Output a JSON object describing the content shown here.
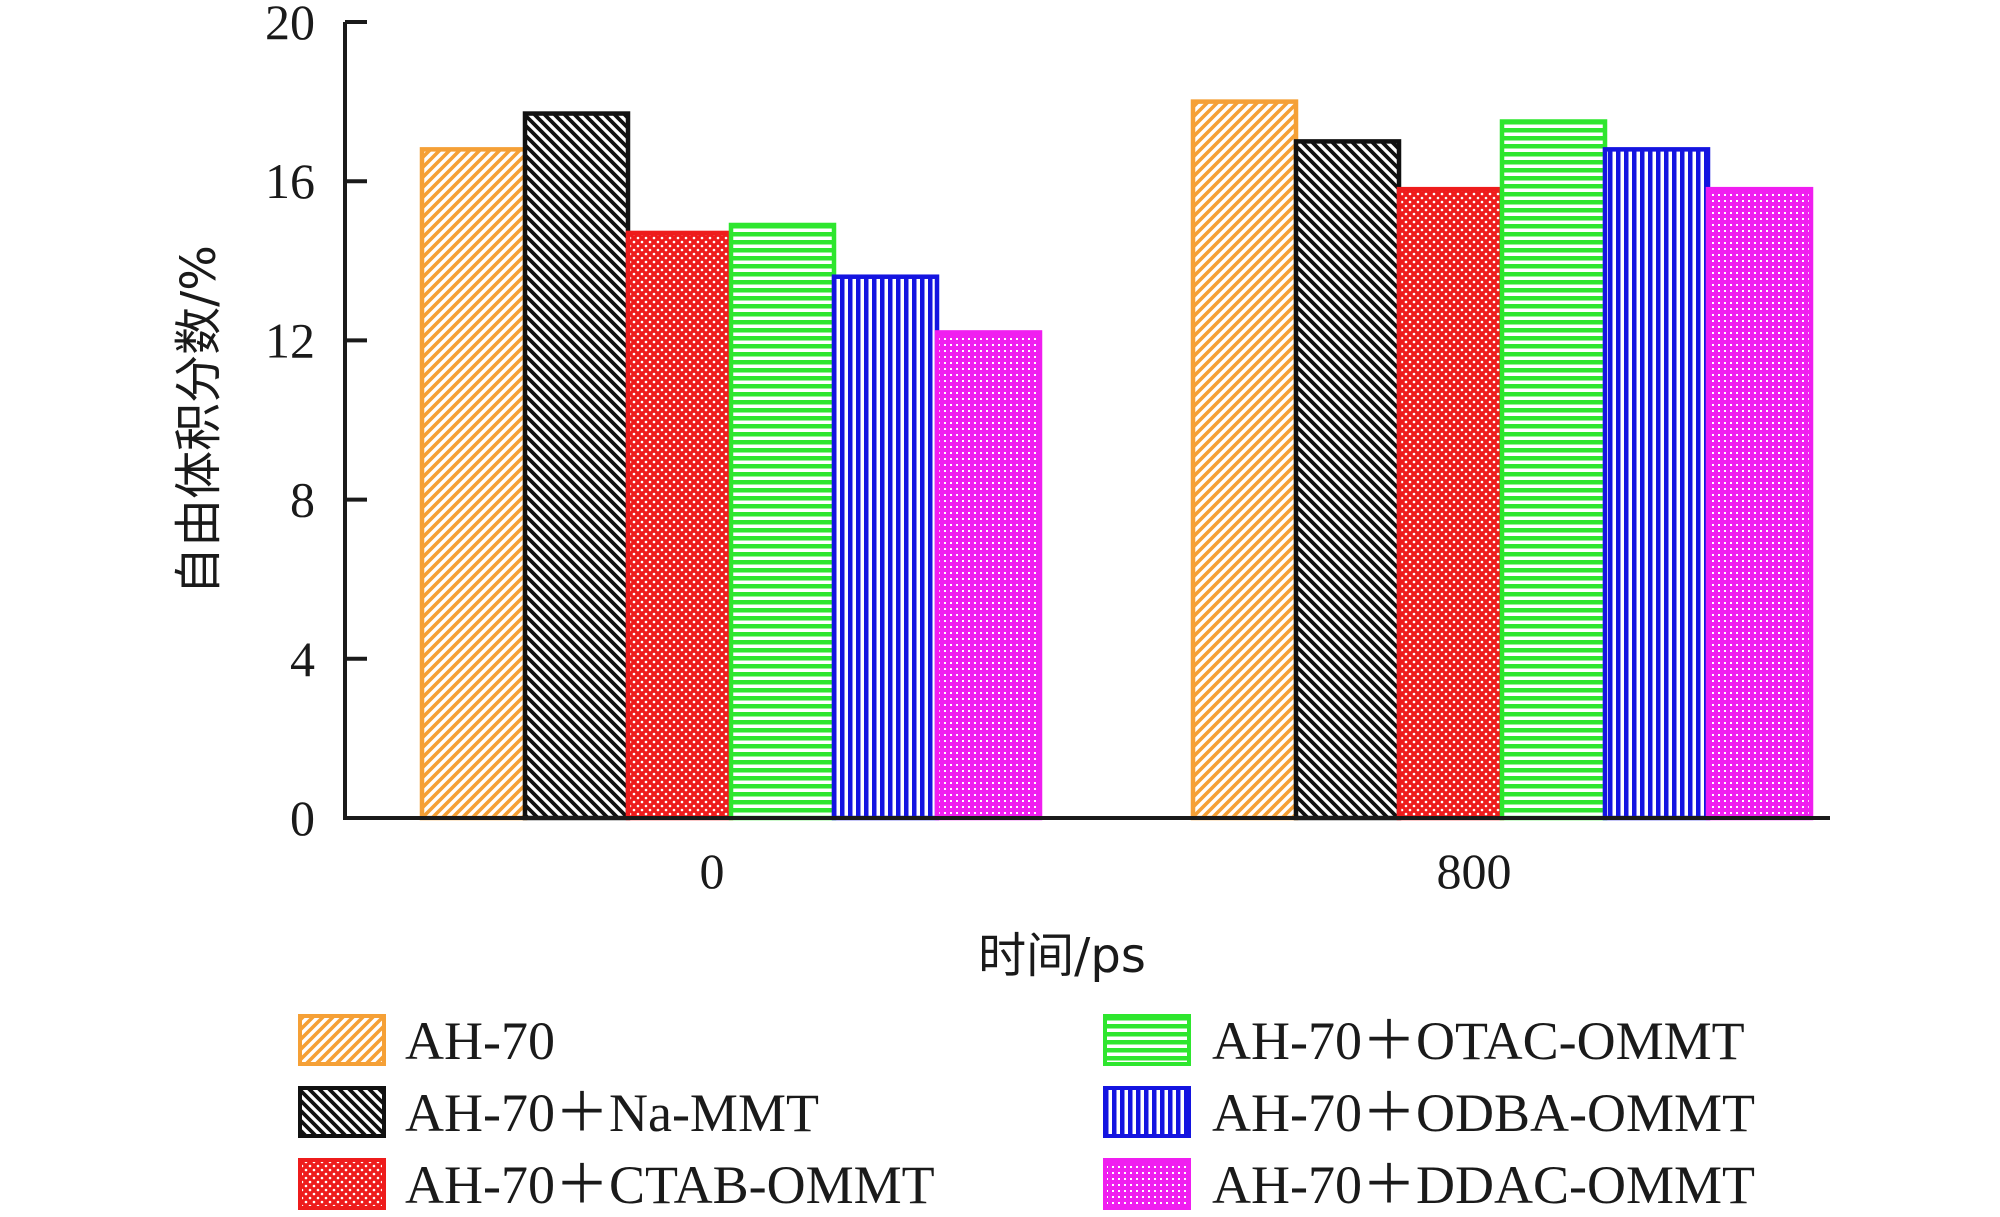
{
  "chart_data": {
    "type": "bar",
    "title": "",
    "xlabel": "时间/ps",
    "ylabel": "自由体积分数/%",
    "ylim": [
      0,
      20
    ],
    "yticks": [
      "0",
      "4",
      "8",
      "12",
      "16",
      "20"
    ],
    "categories": [
      "0",
      "800"
    ],
    "series": [
      {
        "name": "AH-70",
        "values": [
          16.8,
          18.0
        ],
        "color": "#f5a036",
        "pattern": "diag-right"
      },
      {
        "name": "AH-70＋Na-MMT",
        "values": [
          17.7,
          17.0
        ],
        "color": "#111111",
        "pattern": "diag-left"
      },
      {
        "name": "AH-70＋CTAB-OMMT",
        "values": [
          14.7,
          15.8
        ],
        "color": "#ee1c1c",
        "pattern": "dots"
      },
      {
        "name": "AH-70＋OTAC-OMMT",
        "values": [
          14.9,
          17.5
        ],
        "color": "#2ee62e",
        "pattern": "horizontal"
      },
      {
        "name": "AH-70＋ODBA-OMMT",
        "values": [
          13.6,
          16.8
        ],
        "color": "#1414e0",
        "pattern": "vertical"
      },
      {
        "name": "AH-70＋DDAC-OMMT",
        "values": [
          12.2,
          15.8
        ],
        "color": "#f01ef0",
        "pattern": "grid"
      }
    ],
    "legend_position": "bottom"
  }
}
